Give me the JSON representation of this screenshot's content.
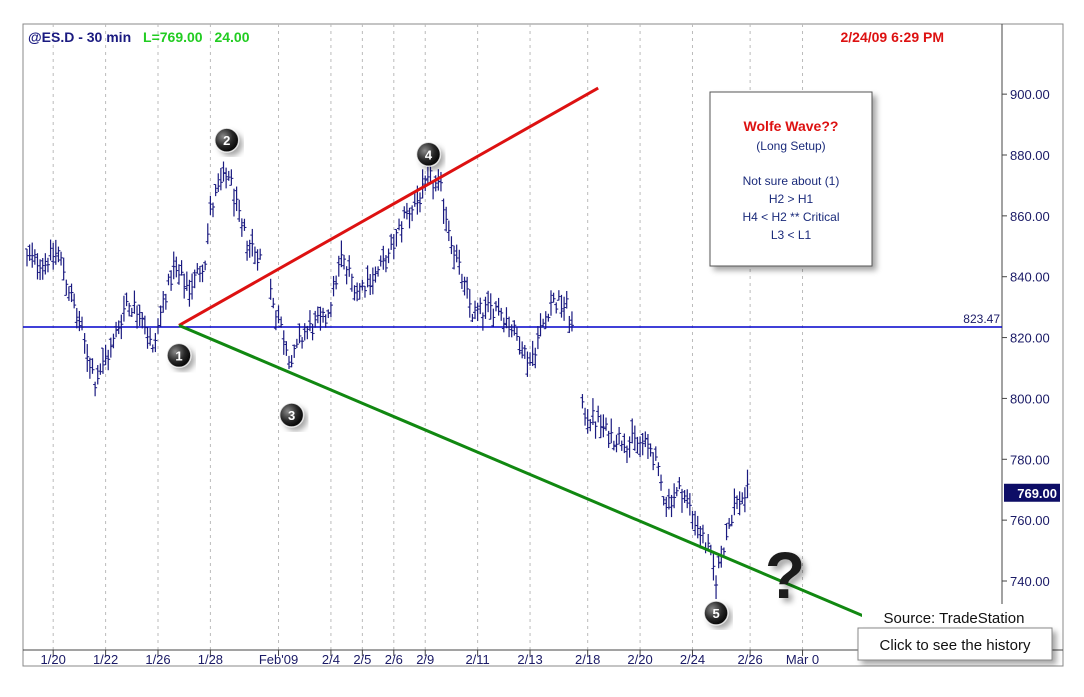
{
  "header": {
    "symbol": "@ES.D - 30 min",
    "last_label": "L=769.00",
    "change": "24.00",
    "datetime": "2/24/09 6:29 PM"
  },
  "colors": {
    "header_blue": "#1a1a80",
    "header_green": "#22cc22",
    "header_red": "#dd1111",
    "bars": "#1a1a80",
    "red_line": "#dd1111",
    "green_line": "#118811",
    "hline": "#0000cc"
  },
  "annotation_box": {
    "title": "Wolfe Wave??",
    "subtitle": "(Long Setup)",
    "lines": [
      "Not sure about (1)",
      "H2 > H1",
      "H4 < H2 ** Critical",
      "L3 < L1"
    ]
  },
  "footer": {
    "source": "Source: TradeStation",
    "history_button": "Click to see the history"
  },
  "chart_data": {
    "type": "candlestick",
    "ylim": [
      717,
      925
    ],
    "y_ticks": [
      "900.00",
      "880.00",
      "860.00",
      "840.00",
      "820.00",
      "800.00",
      "780.00",
      "760.00",
      "740.00"
    ],
    "x_tick_labels": [
      "1/20",
      "1/22",
      "1/26",
      "1/28",
      "Feb'09",
      "2/4",
      "2/5",
      "2/6",
      "2/9",
      "2/11",
      "2/13",
      "2/18",
      "2/20",
      "2/24",
      "2/26",
      "Mar 0"
    ],
    "x_tick_index": [
      10,
      30,
      50,
      70,
      96,
      116,
      128,
      140,
      152,
      172,
      192,
      214,
      234,
      254,
      276,
      296
    ],
    "bar_count": 261,
    "hline_value": 823.47,
    "hline_label": "823.47",
    "last_price_label": "769.00",
    "last_price": 769.0,
    "wave_points": [
      {
        "label": "1",
        "index": 58,
        "price": 824
      },
      {
        "label": "2",
        "index": 77,
        "price": 876
      },
      {
        "label": "3",
        "index": 101,
        "price": 809
      },
      {
        "label": "4",
        "index": 154,
        "price": 873
      },
      {
        "label": "5",
        "index": 263,
        "price": 740
      }
    ],
    "wolfe_lines": [
      {
        "name": "1-4",
        "from": {
          "index": 58,
          "price": 824
        },
        "to": {
          "index": 218,
          "price": 902
        }
      },
      {
        "name": "1-3",
        "from": {
          "index": 58,
          "price": 824
        },
        "to": {
          "index": 337,
          "price": 722
        }
      }
    ],
    "question_mark": "?",
    "close_path": [
      [
        0,
        846
      ],
      [
        6,
        845
      ],
      [
        12,
        848
      ],
      [
        18,
        830
      ],
      [
        26,
        806
      ],
      [
        32,
        816
      ],
      [
        38,
        832
      ],
      [
        44,
        828
      ],
      [
        48,
        815
      ],
      [
        52,
        832
      ],
      [
        56,
        842
      ],
      [
        62,
        836
      ],
      [
        68,
        846
      ],
      [
        70,
        862
      ],
      [
        74,
        870
      ],
      [
        77,
        874
      ],
      [
        82,
        855
      ],
      [
        90,
        845
      ],
      [
        96,
        826
      ],
      [
        101,
        812
      ],
      [
        106,
        822
      ],
      [
        114,
        826
      ],
      [
        120,
        846
      ],
      [
        126,
        836
      ],
      [
        132,
        840
      ],
      [
        138,
        846
      ],
      [
        144,
        860
      ],
      [
        150,
        866
      ],
      [
        154,
        872
      ],
      [
        158,
        868
      ],
      [
        164,
        845
      ],
      [
        170,
        828
      ],
      [
        180,
        830
      ],
      [
        184,
        825
      ],
      [
        192,
        812
      ],
      [
        200,
        832
      ],
      [
        206,
        830
      ],
      [
        208,
        823
      ],
      [
        212,
        796
      ],
      [
        218,
        792
      ],
      [
        222,
        788
      ],
      [
        230,
        786
      ],
      [
        238,
        784
      ],
      [
        244,
        766
      ],
      [
        250,
        770
      ],
      [
        256,
        758
      ],
      [
        260,
        750
      ],
      [
        263,
        741
      ],
      [
        266,
        752
      ],
      [
        270,
        765
      ],
      [
        275,
        769
      ]
    ]
  }
}
